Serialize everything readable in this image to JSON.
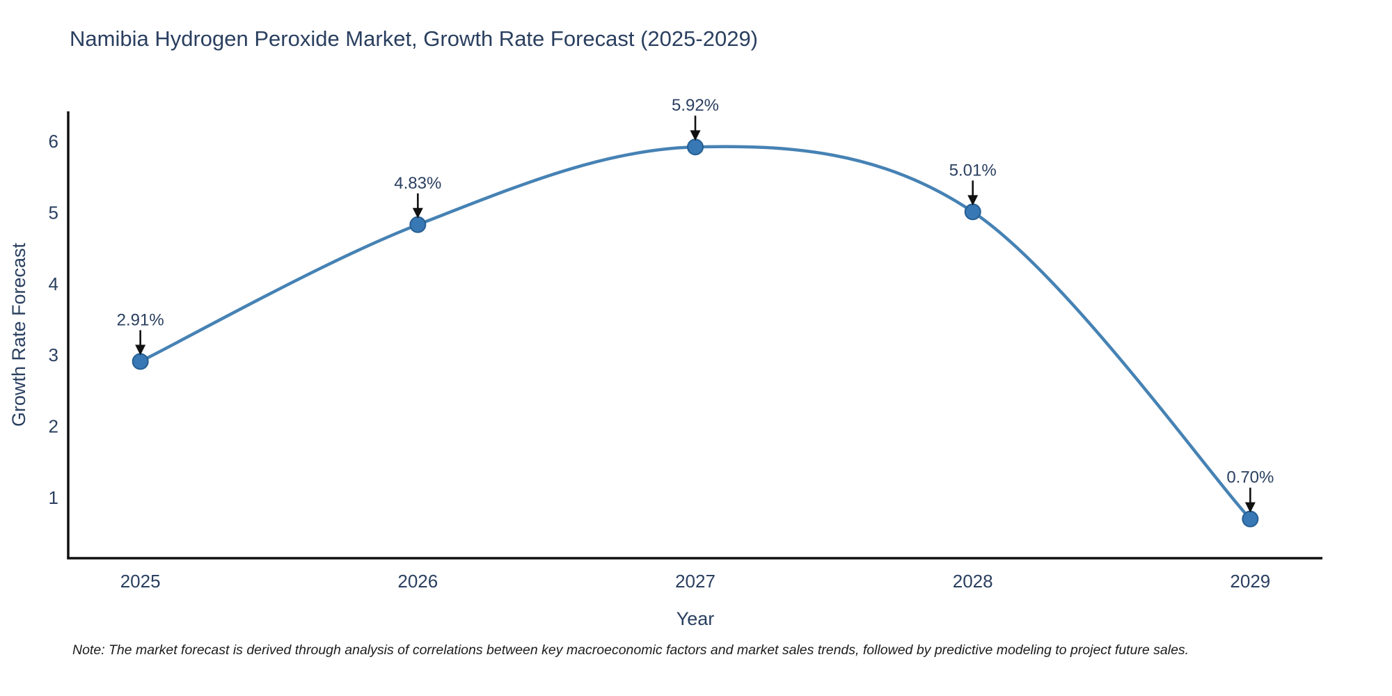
{
  "chart_data": {
    "type": "line",
    "title": "Namibia Hydrogen Peroxide Market, Growth Rate Forecast (2025-2029)",
    "xlabel": "Year",
    "ylabel": "Growth Rate Forecast",
    "x": [
      2025,
      2026,
      2027,
      2028,
      2029
    ],
    "values": [
      2.91,
      4.83,
      5.92,
      5.01,
      0.7
    ],
    "point_labels": [
      "2.91%",
      "4.83%",
      "5.92%",
      "5.01%",
      "0.70%"
    ],
    "x_ticks": [
      "2025",
      "2026",
      "2027",
      "2028",
      "2029"
    ],
    "y_ticks": [
      1,
      2,
      3,
      4,
      5,
      6
    ],
    "xlim": [
      2024.74,
      2029.26
    ],
    "ylim": [
      0.15,
      6.42
    ],
    "line_shape": "spline",
    "grid": false,
    "legend": "none",
    "colors": {
      "line": "#4682b4",
      "marker_fill": "#3878b4",
      "marker_edge": "#255e93",
      "axis": "#111111",
      "text": "#2a3f5f",
      "arrow": "#111111"
    }
  },
  "note": "Note: The market forecast is derived through analysis of correlations between key macroeconomic factors and market sales trends, followed by predictive modeling to project future sales."
}
